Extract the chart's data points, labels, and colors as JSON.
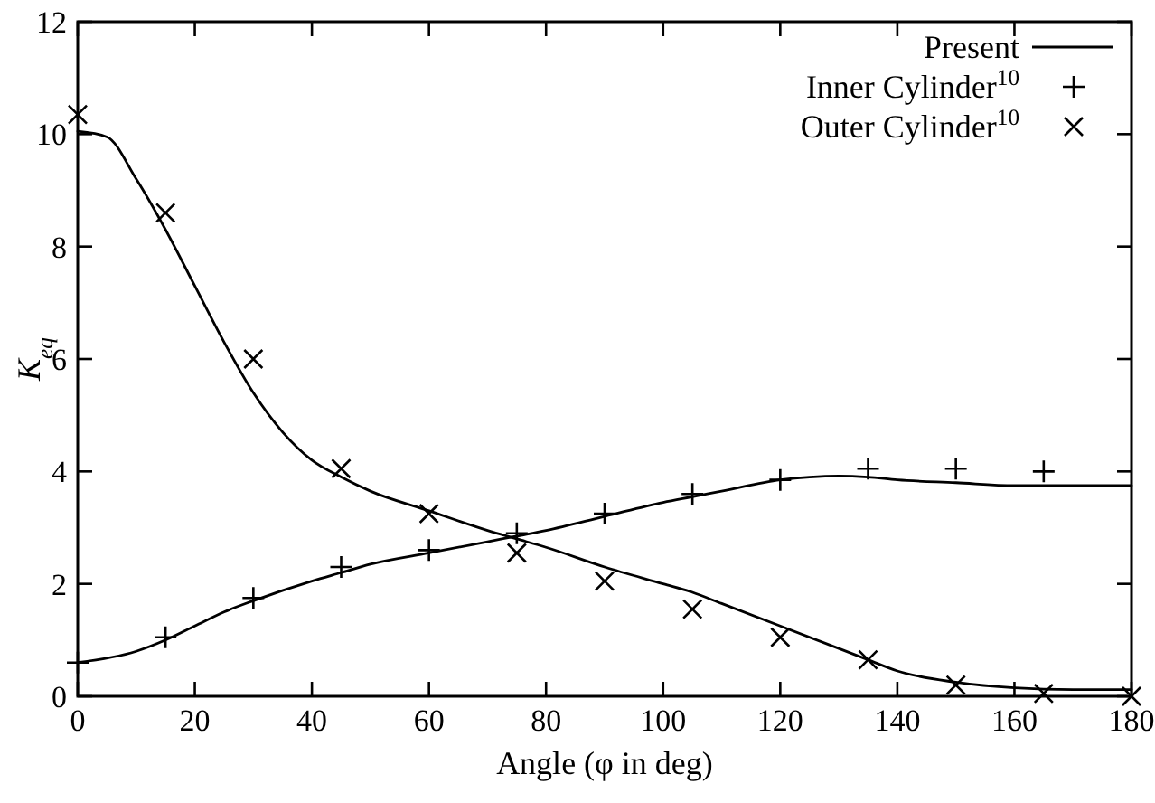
{
  "chart_data": {
    "type": "line",
    "xlabel": "Angle (φ in deg)",
    "ylabel": "K$_{eq}$",
    "xlim": [
      0,
      180
    ],
    "ylim": [
      0,
      12
    ],
    "xticks": [
      0,
      20,
      40,
      60,
      80,
      100,
      120,
      140,
      160,
      180
    ],
    "yticks": [
      0,
      2,
      4,
      6,
      8,
      10,
      12
    ],
    "grid": false,
    "legend": "top right",
    "series": [
      {
        "name": "Present",
        "color": "#000000",
        "x": [
          0,
          5,
          10,
          15,
          20,
          25,
          30,
          35,
          40,
          45,
          50,
          60,
          70,
          75,
          80,
          90,
          100,
          105,
          110,
          120,
          130,
          135,
          140,
          150,
          160,
          170,
          180
        ],
        "values": [
          10.05,
          9.95,
          9.2,
          8.3,
          7.3,
          6.3,
          5.4,
          4.7,
          4.2,
          3.9,
          3.65,
          3.3,
          2.95,
          2.8,
          2.65,
          2.3,
          2.0,
          1.85,
          1.65,
          1.25,
          0.85,
          0.65,
          0.45,
          0.25,
          0.15,
          0.12,
          0.12
        ]
      },
      {
        "color": "#000000",
        "x": [
          0,
          10,
          15,
          20,
          25,
          30,
          40,
          45,
          50,
          60,
          70,
          75,
          80,
          90,
          100,
          105,
          110,
          120,
          125,
          130,
          135,
          140,
          150,
          160,
          170,
          180
        ],
        "values": [
          0.6,
          0.8,
          1.0,
          1.25,
          1.5,
          1.7,
          2.05,
          2.2,
          2.35,
          2.55,
          2.75,
          2.85,
          2.95,
          3.2,
          3.45,
          3.55,
          3.65,
          3.85,
          3.9,
          3.92,
          3.9,
          3.85,
          3.8,
          3.75,
          3.75,
          3.75
        ]
      },
      {
        "name": "Inner Cylinder$^{10}$",
        "type": "scatter",
        "color": "#000000",
        "marker": "cross",
        "x": [
          0,
          15,
          30,
          45,
          60,
          75,
          90,
          105,
          120,
          135,
          150,
          165
        ],
        "values": [
          0.6,
          1.05,
          1.75,
          2.3,
          2.6,
          2.9,
          3.25,
          3.6,
          3.85,
          4.05,
          4.05,
          4.0
        ]
      },
      {
        "name": "Outer Cylinder$^{10}$",
        "type": "scatter",
        "color": "#000000",
        "marker": "x",
        "x": [
          0,
          15,
          30,
          45,
          60,
          75,
          90,
          105,
          120,
          135,
          150,
          165,
          180
        ],
        "values": [
          10.35,
          8.6,
          6.0,
          4.05,
          3.25,
          2.55,
          2.05,
          1.55,
          1.05,
          0.65,
          0.2,
          0.05,
          0.0
        ]
      }
    ]
  }
}
